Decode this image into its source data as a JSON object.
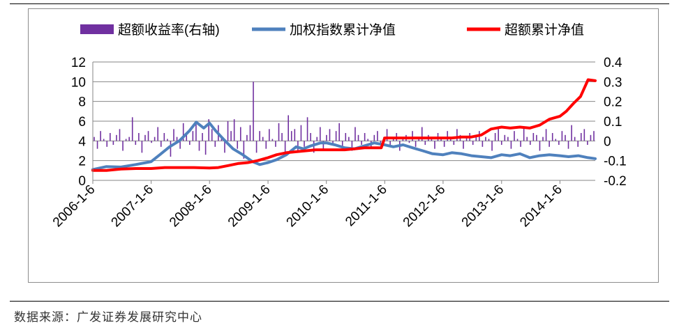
{
  "chart_data": {
    "type": "line",
    "title": "",
    "legend": {
      "placement": "top",
      "entries": [
        {
          "label": "超额收益率(右轴)",
          "kind": "bar",
          "color": "#7030a0"
        },
        {
          "label": "加权指数累计净值",
          "kind": "line",
          "color": "#4f81bd"
        },
        {
          "label": "超额累计净值",
          "kind": "line",
          "color": "#ff0000"
        }
      ]
    },
    "left_axis": {
      "ylim": [
        0,
        12
      ],
      "ticks": [
        "0",
        "2",
        "4",
        "6",
        "8",
        "10",
        "12"
      ]
    },
    "right_axis": {
      "ylim": [
        -0.2,
        0.4
      ],
      "ticks": [
        "-0.2",
        "-0.1",
        "0",
        "0.1",
        "0.2",
        "0.3",
        "0.4"
      ]
    },
    "x_axis": {
      "ticks": [
        "2006-1-6",
        "2007-1-6",
        "2008-1-6",
        "2009-1-6",
        "2010-1-6",
        "2011-1-6",
        "2012-1-6",
        "2013-1-6",
        "2014-1-6"
      ],
      "range": [
        "2006-01-06",
        "2014-08-15"
      ]
    },
    "grid": true,
    "series": [
      {
        "name": "加权指数累计净值",
        "axis": "left",
        "color": "#4f81bd",
        "x": [
          "2006-01-06",
          "2006-04-01",
          "2006-07-01",
          "2006-10-01",
          "2007-01-06",
          "2007-03-01",
          "2007-05-01",
          "2007-07-01",
          "2007-09-01",
          "2007-10-15",
          "2007-12-01",
          "2008-01-06",
          "2008-02-15",
          "2008-04-01",
          "2008-06-01",
          "2008-08-01",
          "2008-10-01",
          "2008-11-15",
          "2009-01-06",
          "2009-03-01",
          "2009-05-01",
          "2009-07-01",
          "2009-08-15",
          "2009-10-01",
          "2009-12-01",
          "2010-01-06",
          "2010-03-01",
          "2010-05-01",
          "2010-07-01",
          "2010-09-01",
          "2010-11-01",
          "2011-01-06",
          "2011-03-01",
          "2011-05-01",
          "2011-07-01",
          "2011-09-01",
          "2011-11-01",
          "2012-01-06",
          "2012-03-01",
          "2012-05-01",
          "2012-07-01",
          "2012-09-01",
          "2012-11-01",
          "2013-01-06",
          "2013-03-01",
          "2013-05-01",
          "2013-07-01",
          "2013-09-01",
          "2013-11-01",
          "2014-01-06",
          "2014-03-01",
          "2014-05-01",
          "2014-07-01",
          "2014-08-15"
        ],
        "values": [
          1.1,
          1.4,
          1.35,
          1.6,
          1.9,
          2.6,
          3.4,
          4.0,
          5.0,
          5.9,
          5.3,
          5.8,
          5.0,
          4.2,
          3.2,
          2.6,
          1.9,
          1.6,
          1.8,
          2.1,
          2.6,
          3.4,
          3.2,
          3.5,
          3.8,
          3.8,
          3.6,
          3.3,
          3.2,
          3.5,
          3.8,
          3.6,
          3.4,
          3.6,
          3.3,
          3.0,
          2.7,
          2.6,
          2.8,
          2.7,
          2.5,
          2.4,
          2.3,
          2.6,
          2.5,
          2.7,
          2.3,
          2.5,
          2.6,
          2.5,
          2.4,
          2.5,
          2.3,
          2.2
        ]
      },
      {
        "name": "超额累计净值",
        "axis": "left",
        "color": "#ff0000",
        "x": [
          "2006-01-06",
          "2006-04-01",
          "2006-07-01",
          "2006-10-01",
          "2007-01-06",
          "2007-04-01",
          "2007-07-01",
          "2007-10-01",
          "2008-01-06",
          "2008-03-01",
          "2008-05-01",
          "2008-07-01",
          "2008-09-01",
          "2008-11-01",
          "2009-01-06",
          "2009-03-01",
          "2009-05-01",
          "2009-07-01",
          "2009-09-01",
          "2009-11-01",
          "2010-01-06",
          "2010-03-01",
          "2010-05-01",
          "2010-07-01",
          "2010-09-01",
          "2010-11-01",
          "2010-12-15",
          "2011-01-06",
          "2011-03-01",
          "2011-05-01",
          "2011-07-01",
          "2011-09-01",
          "2011-11-01",
          "2012-01-06",
          "2012-03-01",
          "2012-05-01",
          "2012-07-01",
          "2012-09-01",
          "2012-11-01",
          "2013-01-06",
          "2013-03-01",
          "2013-05-01",
          "2013-07-01",
          "2013-09-01",
          "2013-11-01",
          "2014-01-06",
          "2014-02-15",
          "2014-04-01",
          "2014-05-15",
          "2014-07-01",
          "2014-08-15"
        ],
        "values": [
          1.0,
          1.0,
          1.15,
          1.2,
          1.2,
          1.3,
          1.3,
          1.3,
          1.25,
          1.3,
          1.5,
          1.7,
          1.8,
          2.0,
          2.3,
          2.6,
          2.8,
          2.9,
          3.0,
          3.1,
          3.1,
          3.1,
          3.1,
          3.2,
          3.3,
          3.3,
          3.3,
          4.3,
          4.3,
          4.3,
          4.3,
          4.3,
          4.3,
          4.3,
          4.3,
          4.4,
          4.4,
          4.6,
          5.2,
          5.4,
          5.3,
          5.4,
          5.3,
          5.6,
          6.2,
          6.5,
          7.0,
          7.8,
          8.5,
          10.2,
          10.1
        ]
      }
    ],
    "bar_series": {
      "name": "超额收益率(右轴)",
      "axis": "right",
      "color": "#7030a0",
      "x_range": [
        "2006-01-06",
        "2014-08-15"
      ],
      "values": [
        0.02,
        -0.04,
        0.05,
        0.01,
        -0.03,
        0.04,
        -0.02,
        0.03,
        0.06,
        -0.05,
        0.01,
        0.02,
        0.12,
        -0.02,
        0.04,
        -0.06,
        0.03,
        0.05,
        -0.01,
        0.02,
        0.07,
        -0.03,
        0.04,
        0.01,
        -0.08,
        0.06,
        0.02,
        -0.04,
        0.09,
        0.03,
        -0.02,
        0.05,
        0.1,
        -0.05,
        0.04,
        -0.07,
        0.11,
        0.06,
        -0.03,
        0.08,
        0.02,
        -0.06,
        0.1,
        0.05,
        0.11,
        -0.04,
        0.07,
        -0.09,
        0.03,
        0.08,
        0.3,
        -0.06,
        0.05,
        0.02,
        -0.04,
        0.06,
        0.01,
        -0.03,
        0.09,
        0.04,
        -0.07,
        0.13,
        0.05,
        0.06,
        -0.05,
        0.08,
        -0.03,
        0.12,
        0.04,
        -0.06,
        0.02,
        0.07,
        -0.04,
        0.03,
        0.06,
        -0.02,
        0.05,
        0.09,
        -0.03,
        0.04,
        0.02,
        -0.05,
        0.07,
        0.03,
        -0.02,
        0.04,
        0.01,
        -0.04,
        0.03,
        0.05,
        -0.02,
        0.02,
        0.06,
        -0.03,
        0.01,
        0.04,
        -0.05,
        0.02,
        0.03,
        -0.01,
        0.05,
        -0.03,
        0.02,
        0.07,
        -0.02,
        0.03,
        0.01,
        -0.04,
        0.04,
        0.02,
        -0.03,
        0.05,
        0.01,
        -0.02,
        0.06,
        0.03,
        -0.04,
        0.02,
        0.04,
        -0.02,
        0.03,
        0.05,
        -0.03,
        0.02,
        0.01,
        -0.05,
        0.04,
        0.06,
        -0.02,
        0.03,
        0.02,
        -0.04,
        0.05,
        0.01,
        -0.03,
        0.07,
        0.02,
        -0.02,
        0.04,
        0.03,
        -0.05,
        0.02,
        0.06,
        -0.03,
        0.04,
        0.01,
        -0.02,
        0.05,
        0.03,
        -0.04,
        0.08,
        0.02,
        -0.03,
        0.04,
        0.06,
        -0.02,
        0.03,
        0.05
      ]
    }
  },
  "source_note": "数据来源：广发证券发展研究中心"
}
